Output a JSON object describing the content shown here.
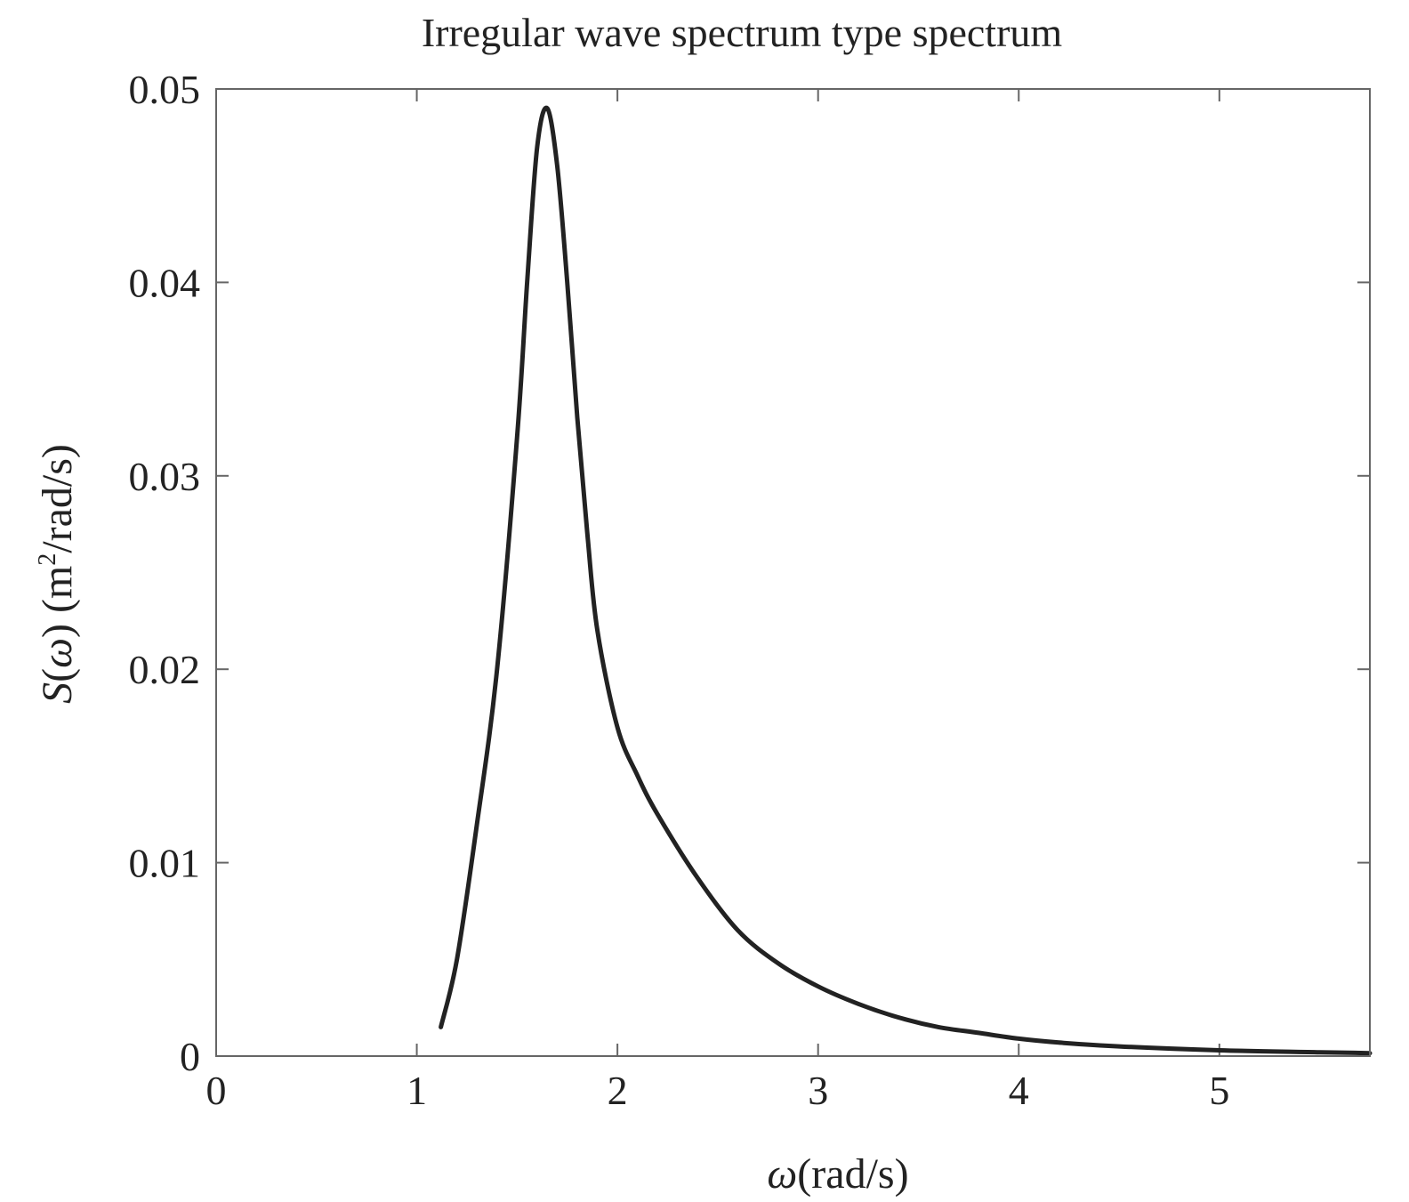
{
  "chart_data": {
    "type": "line",
    "title": "Irregular wave spectrum type spectrum",
    "xlabel": {
      "symbol": "ω",
      "unit": "(rad/s)"
    },
    "ylabel": {
      "symbol": "S",
      "open": "(",
      "arg": "ω",
      "close": ")",
      "unit_prefix": " (m",
      "unit_sup": "2",
      "unit_suffix": "/rad/s)"
    },
    "xlim": [
      0,
      5.75
    ],
    "ylim": [
      0,
      0.05
    ],
    "xticks": [
      "0",
      "1",
      "2",
      "3",
      "4",
      "5"
    ],
    "xtick_values": [
      0,
      1,
      2,
      3,
      4,
      5
    ],
    "yticks": [
      "0",
      "0.01",
      "0.02",
      "0.03",
      "0.04",
      "0.05"
    ],
    "ytick_values": [
      0,
      0.01,
      0.02,
      0.03,
      0.04,
      0.05
    ],
    "grid": false,
    "line_color": "#222222",
    "series": [
      {
        "x": [
          1.12,
          1.2,
          1.3,
          1.4,
          1.5,
          1.55,
          1.6,
          1.65,
          1.7,
          1.75,
          1.8,
          1.85,
          1.9,
          2.0,
          2.1,
          2.2,
          2.4,
          2.6,
          2.8,
          3.0,
          3.2,
          3.4,
          3.6,
          3.8,
          4.0,
          4.2,
          4.5,
          5.0,
          5.5,
          5.75
        ],
        "y": [
          0.0015,
          0.005,
          0.012,
          0.02,
          0.032,
          0.04,
          0.047,
          0.049,
          0.046,
          0.04,
          0.033,
          0.027,
          0.022,
          0.017,
          0.0145,
          0.0125,
          0.0092,
          0.0065,
          0.0048,
          0.0036,
          0.0027,
          0.002,
          0.0015,
          0.0012,
          0.0009,
          0.0007,
          0.0005,
          0.0003,
          0.0002,
          0.00015
        ]
      }
    ]
  }
}
